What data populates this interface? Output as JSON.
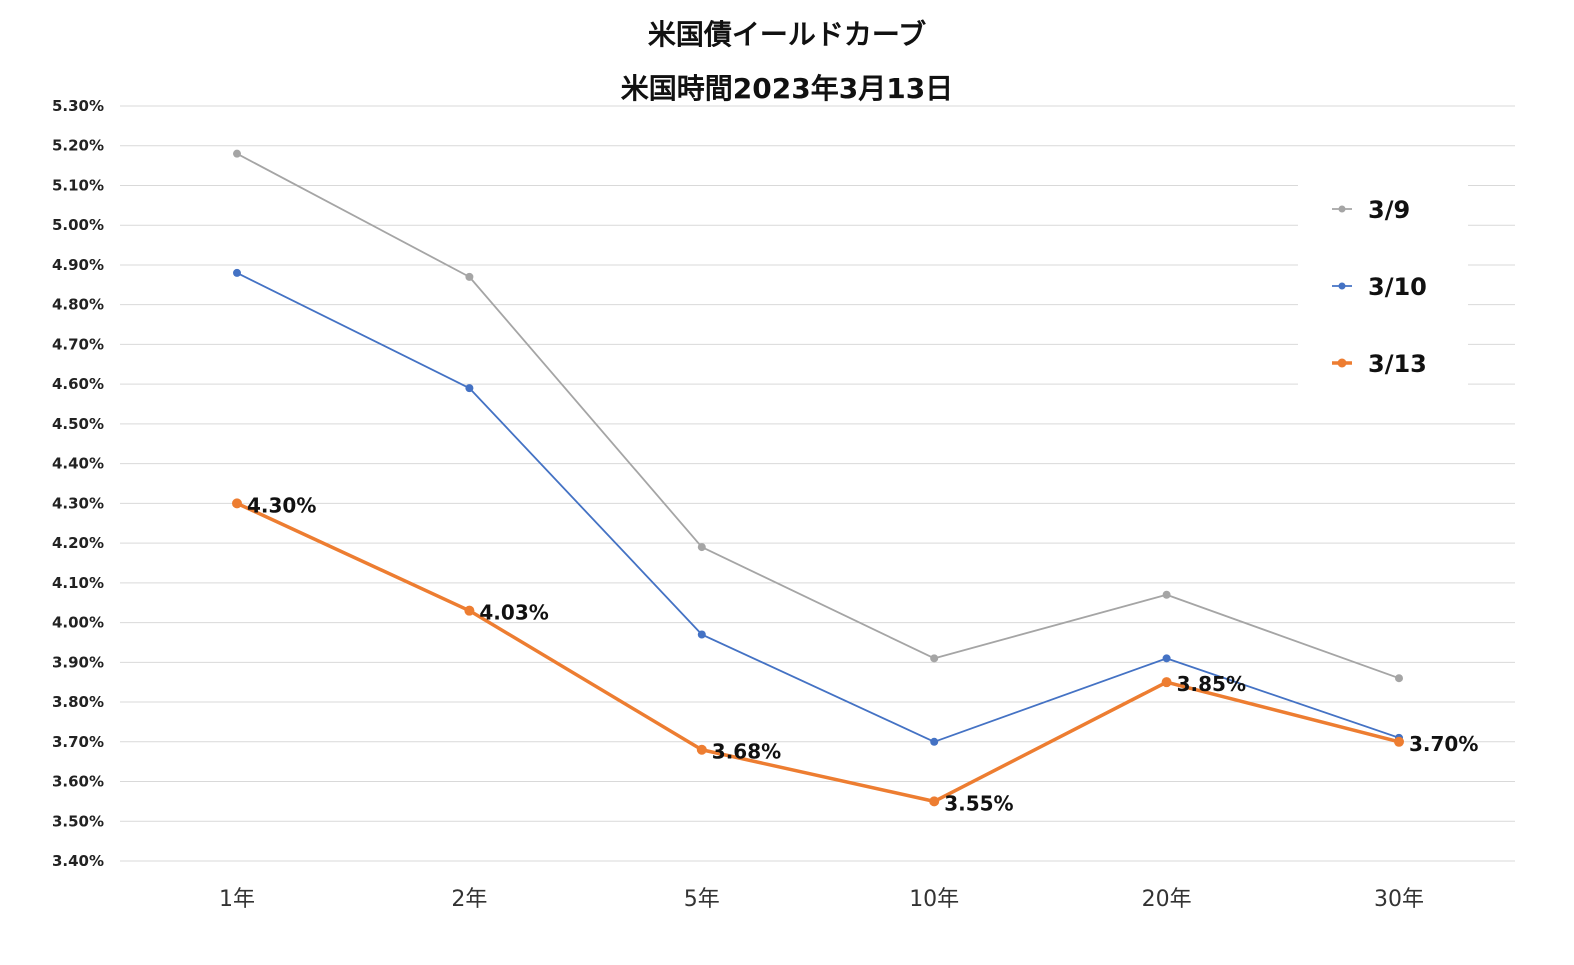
{
  "chart_data": {
    "type": "line",
    "title": "米国債イールドカーブ",
    "subtitle": "米国時間2023年3月13日",
    "categories": [
      "1年",
      "2年",
      "5年",
      "10年",
      "20年",
      "30年"
    ],
    "ylim": [
      3.4,
      5.3
    ],
    "ytick_step": 0.1,
    "ytick_format": "percent_2dp",
    "grid": true,
    "legend_position": "right",
    "series": [
      {
        "name": "3/9",
        "values": [
          5.18,
          4.87,
          4.19,
          3.91,
          4.07,
          3.86
        ],
        "color": "#a5a5a5",
        "line_width": "thin",
        "show_labels": false
      },
      {
        "name": "3/10",
        "values": [
          4.88,
          4.59,
          3.97,
          3.7,
          3.91,
          3.71
        ],
        "color": "#4472c4",
        "line_width": "thin",
        "show_labels": false
      },
      {
        "name": "3/13",
        "values": [
          4.3,
          4.03,
          3.68,
          3.55,
          3.85,
          3.7
        ],
        "color": "#ed7d31",
        "line_width": "thick",
        "show_labels": true,
        "labels": [
          "4.30%",
          "4.03%",
          "3.68%",
          "3.55%",
          "3.85%",
          "3.70%"
        ]
      }
    ]
  }
}
